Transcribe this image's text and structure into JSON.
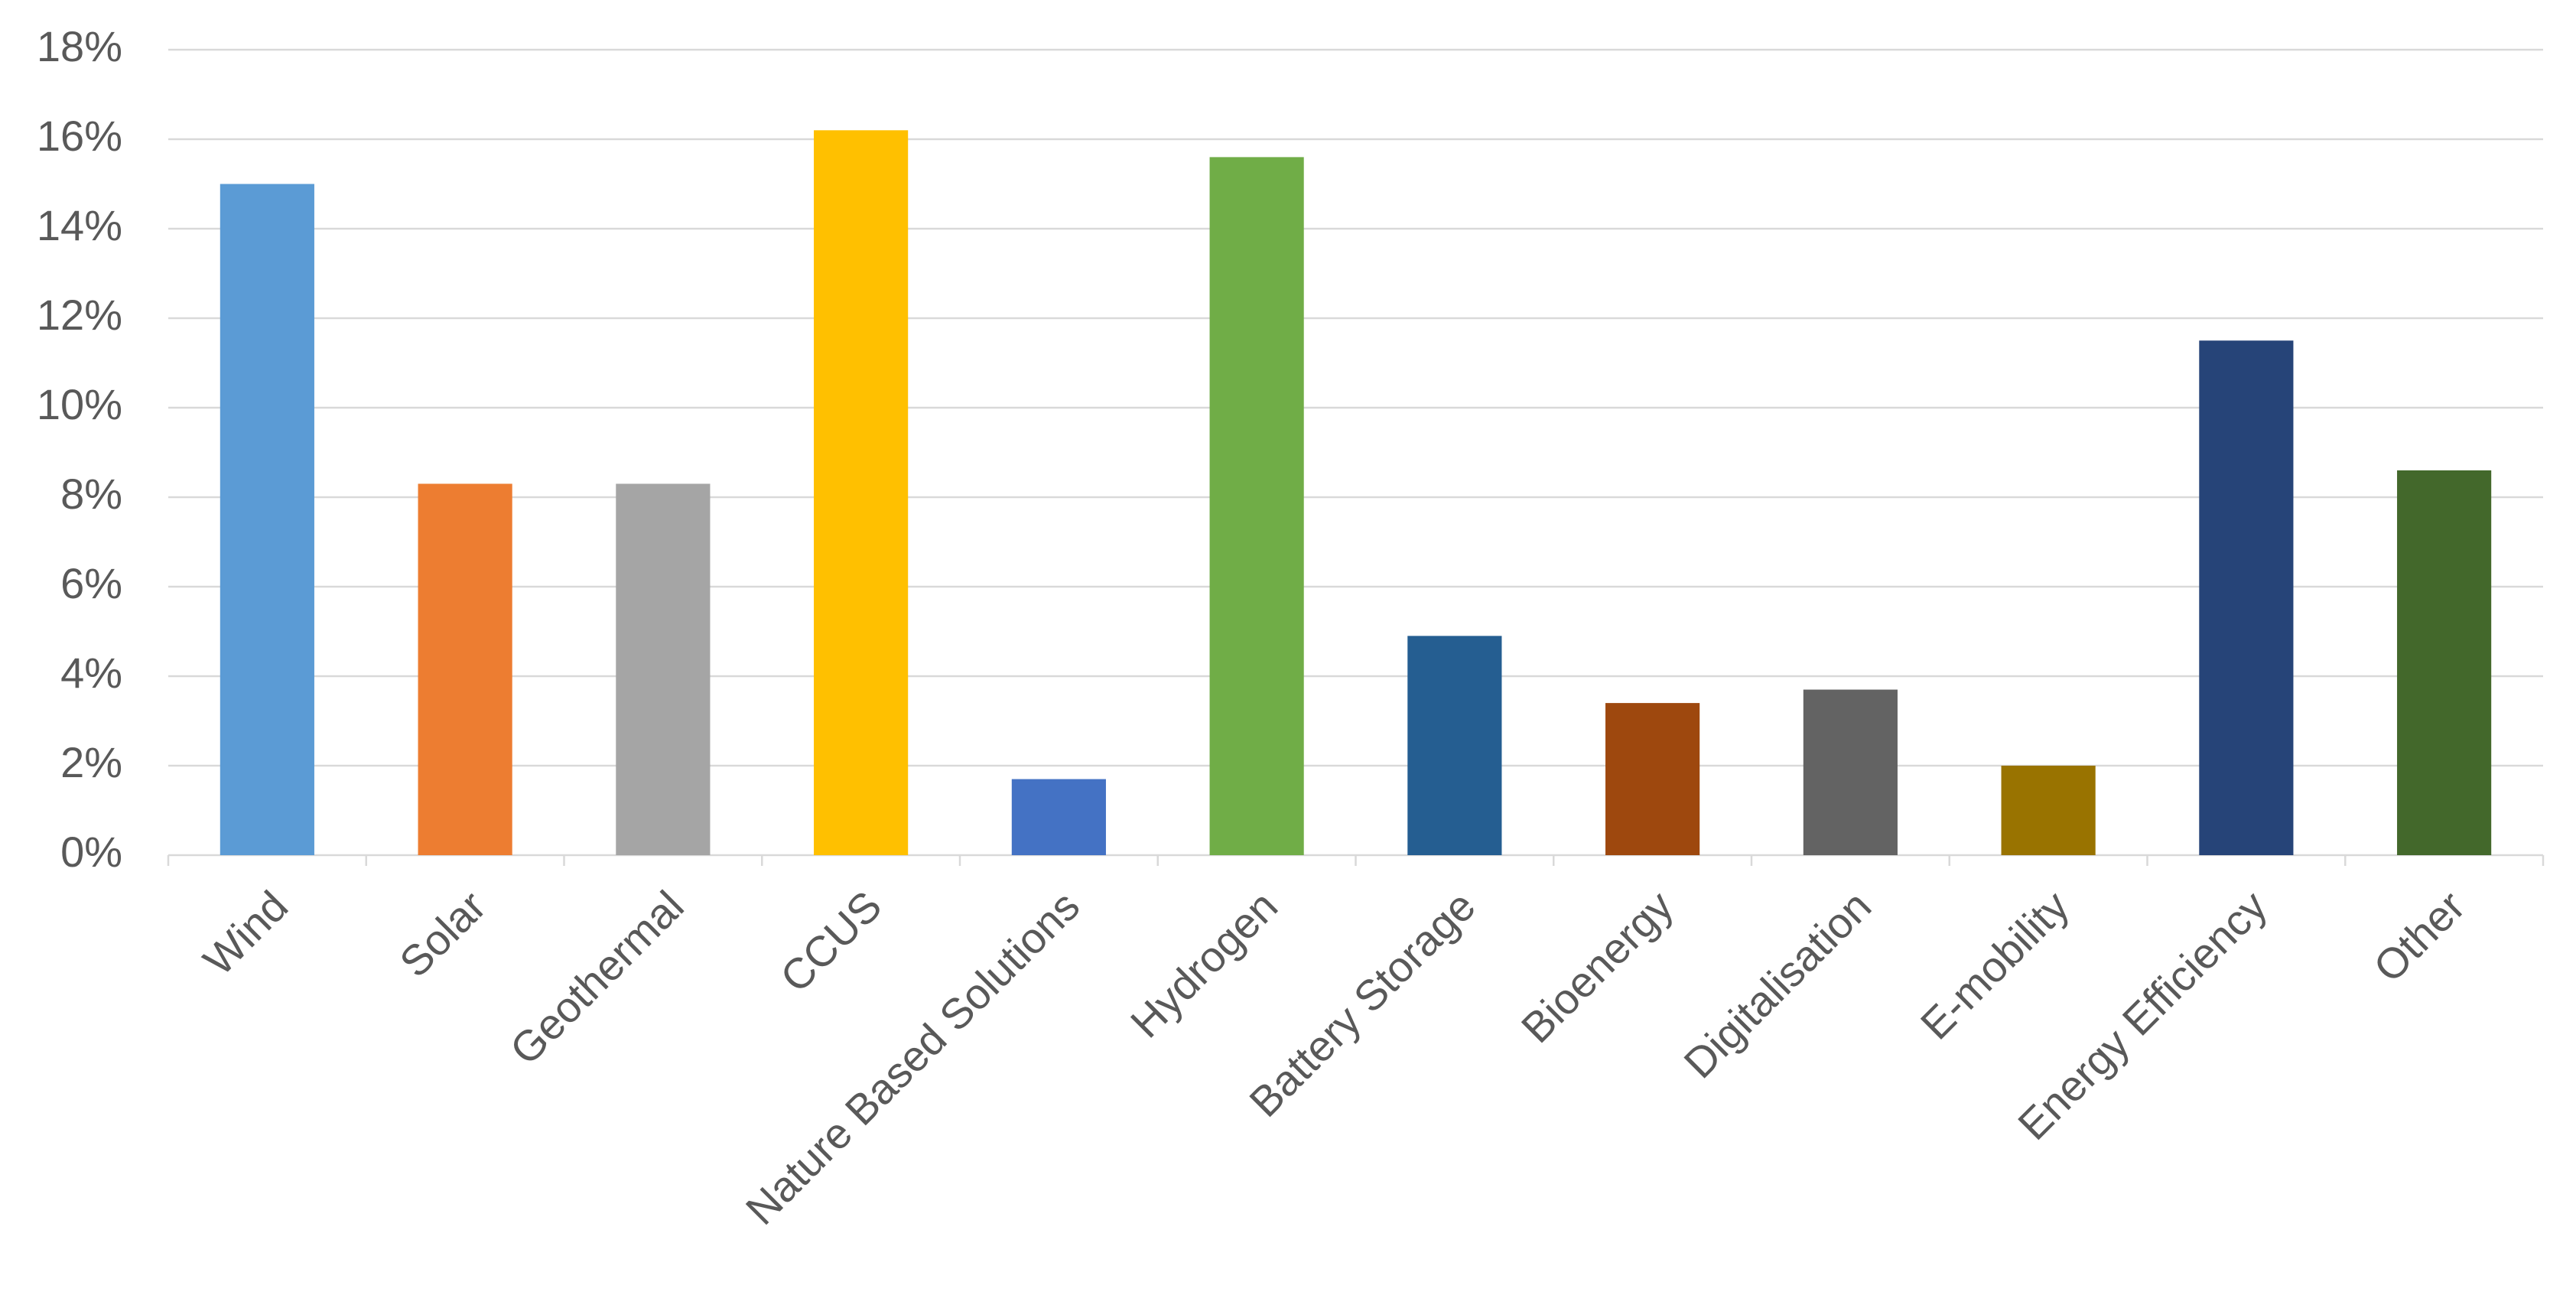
{
  "chart_data": {
    "type": "bar",
    "categories": [
      "Wind",
      "Solar",
      "Geothermal",
      "CCUS",
      "Nature Based Solutions",
      "Hydrogen",
      "Battery Storage",
      "Bioenergy",
      "Digitalisation",
      "E-mobility",
      "Energy Efficiency",
      "Other"
    ],
    "values": [
      15.0,
      8.3,
      8.3,
      16.2,
      1.7,
      15.6,
      4.9,
      3.4,
      3.7,
      2.0,
      11.5,
      8.6
    ],
    "colors": [
      "#5b9bd5",
      "#ed7d31",
      "#a5a5a5",
      "#ffc000",
      "#4472c4",
      "#70ad47",
      "#255e91",
      "#9e480e",
      "#636363",
      "#997300",
      "#264478",
      "#43682b"
    ],
    "ylim": [
      0,
      18
    ],
    "yticks": [
      {
        "value": 0,
        "label": "0%"
      },
      {
        "value": 2,
        "label": "2%"
      },
      {
        "value": 4,
        "label": "4%"
      },
      {
        "value": 6,
        "label": "6%"
      },
      {
        "value": 8,
        "label": "8%"
      },
      {
        "value": 10,
        "label": "10%"
      },
      {
        "value": 12,
        "label": "12%"
      },
      {
        "value": 14,
        "label": "14%"
      },
      {
        "value": 16,
        "label": "16%"
      },
      {
        "value": 18,
        "label": "18%"
      }
    ],
    "grid": true
  }
}
